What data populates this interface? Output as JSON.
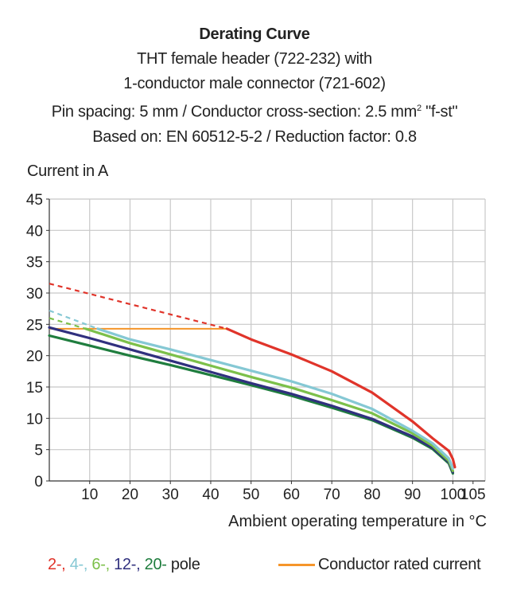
{
  "header": {
    "title": "Derating Curve",
    "subtitle1": "THT female header  (722-232) with",
    "subtitle2": "1-conductor male connector (721-602)",
    "subtitle3_pre": "Pin spacing: 5 mm / Conductor cross-section: 2.5 mm",
    "subtitle3_sup": "2",
    "subtitle3_post": " \"f-st\"",
    "subtitle4": "Based on: EN 60512-5-2 / Reduction factor: 0.8"
  },
  "legend": {
    "pole_items": [
      {
        "label": "2-,",
        "color": "#e0342a"
      },
      {
        "label": "4-,",
        "color": "#85c8d4"
      },
      {
        "label": "6-,",
        "color": "#7cc04a"
      },
      {
        "label": "12-,",
        "color": "#30307e"
      },
      {
        "label": "20-",
        "color": "#1f7d3e"
      }
    ],
    "pole_suffix": "pole",
    "rated_label": "Conductor rated current",
    "rated_color": "#f5952a"
  },
  "chart_data": {
    "type": "line",
    "xlabel": "Ambient operating temperature in °C",
    "ylabel": "Current in A",
    "xlim": [
      0,
      108
    ],
    "ylim": [
      0,
      45
    ],
    "xticks": [
      10,
      20,
      30,
      40,
      50,
      60,
      70,
      80,
      90,
      100,
      105
    ],
    "yticks": [
      0,
      5,
      10,
      15,
      20,
      25,
      30,
      35,
      40,
      45
    ],
    "grid": true,
    "series": [
      {
        "name": "2-",
        "color": "#e0342a",
        "dashed": [
          [
            0,
            31.5
          ],
          [
            44,
            24.3
          ]
        ],
        "points": [
          [
            44,
            24.3
          ],
          [
            50,
            22.6
          ],
          [
            60,
            20.2
          ],
          [
            70,
            17.5
          ],
          [
            80,
            14.1
          ],
          [
            90,
            9.5
          ],
          [
            95,
            6.8
          ],
          [
            99,
            4.8
          ],
          [
            100,
            3.5
          ],
          [
            100.5,
            2.2
          ]
        ]
      },
      {
        "name": "4-",
        "color": "#85c8d4",
        "dashed": [
          [
            0,
            27.2
          ],
          [
            12,
            24.3
          ]
        ],
        "points": [
          [
            12,
            24.3
          ],
          [
            20,
            22.6
          ],
          [
            30,
            21.0
          ],
          [
            40,
            19.3
          ],
          [
            50,
            17.6
          ],
          [
            60,
            15.9
          ],
          [
            70,
            13.9
          ],
          [
            80,
            11.5
          ],
          [
            90,
            8.0
          ],
          [
            95,
            6.0
          ],
          [
            99,
            3.6
          ],
          [
            100,
            2.0
          ]
        ]
      },
      {
        "name": "6-",
        "color": "#7cc04a",
        "dashed": [
          [
            0,
            26.0
          ],
          [
            9,
            24.3
          ]
        ],
        "points": [
          [
            9,
            24.3
          ],
          [
            20,
            22.0
          ],
          [
            30,
            20.2
          ],
          [
            40,
            18.4
          ],
          [
            50,
            16.6
          ],
          [
            60,
            14.9
          ],
          [
            70,
            12.9
          ],
          [
            80,
            10.8
          ],
          [
            90,
            7.6
          ],
          [
            95,
            5.6
          ],
          [
            99,
            3.2
          ],
          [
            100,
            1.6
          ]
        ]
      },
      {
        "name": "12-",
        "color": "#30307e",
        "dashed": [],
        "points": [
          [
            0,
            24.5
          ],
          [
            10,
            22.8
          ],
          [
            20,
            21.0
          ],
          [
            30,
            19.2
          ],
          [
            40,
            17.4
          ],
          [
            50,
            15.6
          ],
          [
            60,
            13.9
          ],
          [
            70,
            12.0
          ],
          [
            80,
            9.9
          ],
          [
            90,
            7.1
          ],
          [
            95,
            5.3
          ],
          [
            99,
            3.0
          ],
          [
            100,
            1.4
          ]
        ]
      },
      {
        "name": "20-",
        "color": "#1f7d3e",
        "dashed": [],
        "points": [
          [
            0,
            23.2
          ],
          [
            10,
            21.6
          ],
          [
            20,
            20.0
          ],
          [
            30,
            18.5
          ],
          [
            40,
            16.9
          ],
          [
            50,
            15.3
          ],
          [
            60,
            13.6
          ],
          [
            70,
            11.7
          ],
          [
            80,
            9.7
          ],
          [
            90,
            6.9
          ],
          [
            95,
            5.1
          ],
          [
            99,
            2.8
          ],
          [
            100,
            1.2
          ]
        ]
      }
    ],
    "rated_current": {
      "name": "Conductor rated current",
      "color": "#f5952a",
      "y": 24.3,
      "x_range": [
        0,
        44
      ]
    }
  }
}
